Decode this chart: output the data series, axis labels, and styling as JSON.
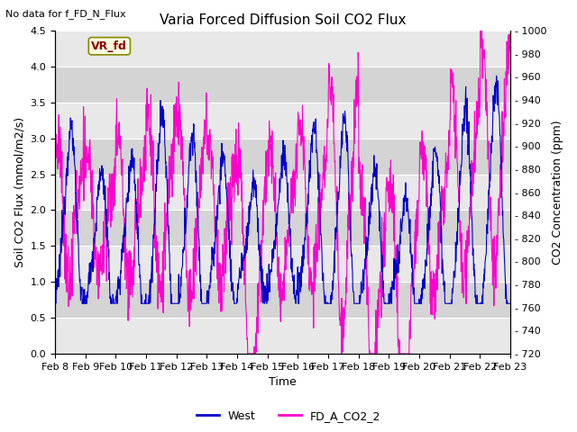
{
  "title": "Varia Forced Diffusion Soil CO2 Flux",
  "top_left_text": "No data for f_FD_N_Flux",
  "vr_fd_label": "VR_fd",
  "xlabel": "Time",
  "ylabel_left": "Soil CO2 Flux (mmol/m2/s)",
  "ylabel_right": "CO2 Concentration (ppm)",
  "ylim_left": [
    0.0,
    4.5
  ],
  "ylim_right": [
    720,
    1000
  ],
  "yticks_left": [
    0.0,
    0.5,
    1.0,
    1.5,
    2.0,
    2.5,
    3.0,
    3.5,
    4.0,
    4.5
  ],
  "yticks_right": [
    720,
    740,
    760,
    780,
    800,
    820,
    840,
    860,
    880,
    900,
    920,
    940,
    960,
    980,
    1000
  ],
  "xtick_labels": [
    "Feb 8",
    "Feb 9",
    "Feb 10",
    "Feb 11",
    "Feb 12",
    "Feb 13",
    "Feb 14",
    "Feb 15",
    "Feb 16",
    "Feb 17",
    "Feb 18",
    "Feb 19",
    "Feb 20",
    "Feb 21",
    "Feb 22",
    "Feb 23"
  ],
  "west_color": "#0000CC",
  "co2_color": "#FF00CC",
  "band_colors": [
    "#E8E8E8",
    "#D4D4D4"
  ],
  "legend_entries": [
    "West",
    "FD_A_CO2_2"
  ],
  "figsize": [
    6.4,
    4.8
  ],
  "dpi": 100,
  "n_days": 15,
  "pts_per_day": 96
}
